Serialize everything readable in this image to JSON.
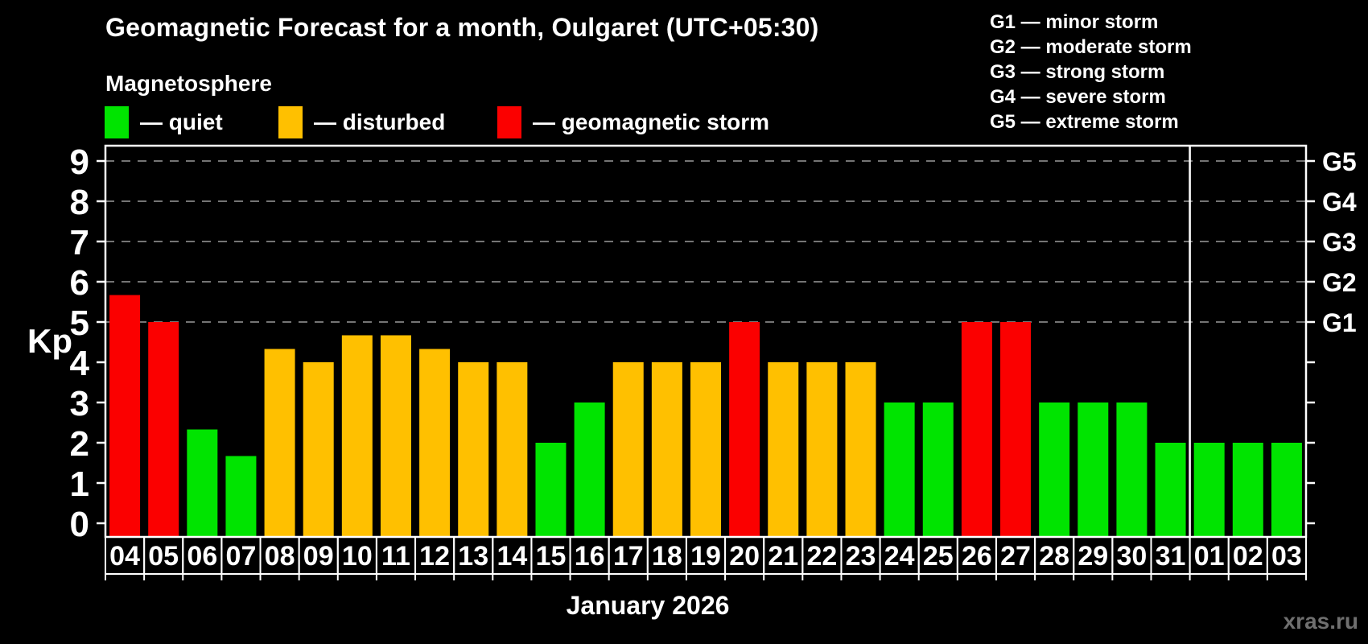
{
  "header": {
    "title": "Geomagnetic Forecast for a month, Oulgaret (UTC+05:30)",
    "subtitle": "Magnetosphere"
  },
  "legend": {
    "items": [
      {
        "key": "quiet",
        "label": "— quiet",
        "color": "#00e400"
      },
      {
        "key": "disturbed",
        "label": "— disturbed",
        "color": "#ffc000"
      },
      {
        "key": "storm",
        "label": "— geomagnetic storm",
        "color": "#fb0000"
      }
    ]
  },
  "storm_scale": {
    "items": [
      "G1 — minor storm",
      "G2 — moderate storm",
      "G3 — strong storm",
      "G4 — severe storm",
      "G5 — extreme storm"
    ]
  },
  "chart_data": {
    "type": "bar",
    "title": "Geomagnetic Forecast for a month, Oulgaret (UTC+05:30)",
    "subtitle": "Magnetosphere",
    "categories": [
      "04",
      "05",
      "06",
      "07",
      "08",
      "09",
      "10",
      "11",
      "12",
      "13",
      "14",
      "15",
      "16",
      "17",
      "18",
      "19",
      "20",
      "21",
      "22",
      "23",
      "24",
      "25",
      "26",
      "27",
      "28",
      "29",
      "30",
      "31",
      "01",
      "02",
      "03"
    ],
    "values": [
      5.67,
      5,
      2.33,
      1.67,
      4.33,
      4,
      4.67,
      4.67,
      4.33,
      4,
      4,
      2,
      3,
      4,
      4,
      4,
      5,
      4,
      4,
      4,
      3,
      3,
      5,
      5,
      3,
      3,
      3,
      2,
      2,
      2,
      2
    ],
    "statuses": [
      "storm",
      "storm",
      "quiet",
      "quiet",
      "disturbed",
      "disturbed",
      "disturbed",
      "disturbed",
      "disturbed",
      "disturbed",
      "disturbed",
      "quiet",
      "quiet",
      "disturbed",
      "disturbed",
      "disturbed",
      "storm",
      "disturbed",
      "disturbed",
      "disturbed",
      "quiet",
      "quiet",
      "storm",
      "storm",
      "quiet",
      "quiet",
      "quiet",
      "quiet",
      "quiet",
      "quiet",
      "quiet"
    ],
    "status_colors": {
      "quiet": "#00e400",
      "disturbed": "#ffc000",
      "storm": "#fb0000"
    },
    "ylabel": "Kp",
    "xlabel": "January 2026",
    "ylim": [
      0,
      9
    ],
    "yticks": [
      0,
      1,
      2,
      3,
      4,
      5,
      6,
      7,
      8,
      9
    ],
    "gridline_values": [
      5,
      6,
      7,
      8,
      9
    ],
    "grid": "dashed horizontal at storm levels only",
    "legend_position": "top-left",
    "right_axis": {
      "ticks": [
        0,
        1,
        2,
        3,
        4,
        5,
        6,
        7,
        8,
        9
      ],
      "labels": [
        {
          "value": 5,
          "text": "G1"
        },
        {
          "value": 6,
          "text": "G2"
        },
        {
          "value": 7,
          "text": "G3"
        },
        {
          "value": 8,
          "text": "G4"
        },
        {
          "value": 9,
          "text": "G5"
        }
      ]
    },
    "month_separator_after_index": 27
  },
  "watermark": "xras.ru"
}
